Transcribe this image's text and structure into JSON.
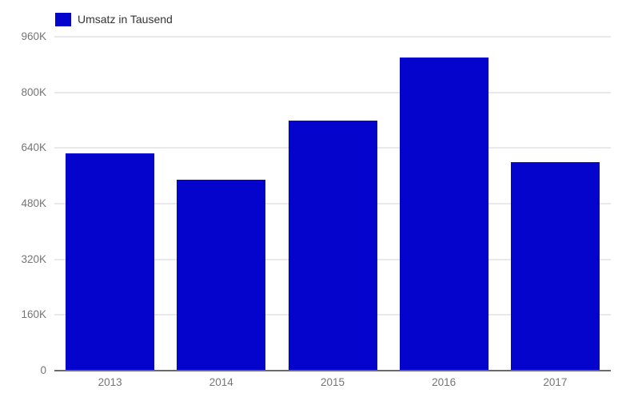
{
  "legend": {
    "label": "Umsatz in Tausend",
    "swatch_icon": "legend-color-swatch"
  },
  "colors": {
    "bar": "#0404cc",
    "gridline": "#e9e9e9",
    "baseline": "#6a6a6a",
    "tick_label": "#757575",
    "legend_text": "#333333",
    "background": "#ffffff"
  },
  "chart_data": {
    "type": "bar",
    "title": "",
    "xlabel": "",
    "ylabel": "",
    "categories": [
      "2013",
      "2014",
      "2015",
      "2016",
      "2017"
    ],
    "series": [
      {
        "name": "Umsatz in Tausend",
        "values": [
          625000,
          550000,
          720000,
          900000,
          600000
        ]
      }
    ],
    "ylim": [
      0,
      960000
    ],
    "yticks": [
      {
        "value": 0,
        "label": "0"
      },
      {
        "value": 160000,
        "label": "160K"
      },
      {
        "value": 320000,
        "label": "320K"
      },
      {
        "value": 480000,
        "label": "480K"
      },
      {
        "value": 640000,
        "label": "640K"
      },
      {
        "value": 800000,
        "label": "800K"
      },
      {
        "value": 960000,
        "label": "960K"
      }
    ],
    "grid": true,
    "legend_position": "top-left"
  }
}
